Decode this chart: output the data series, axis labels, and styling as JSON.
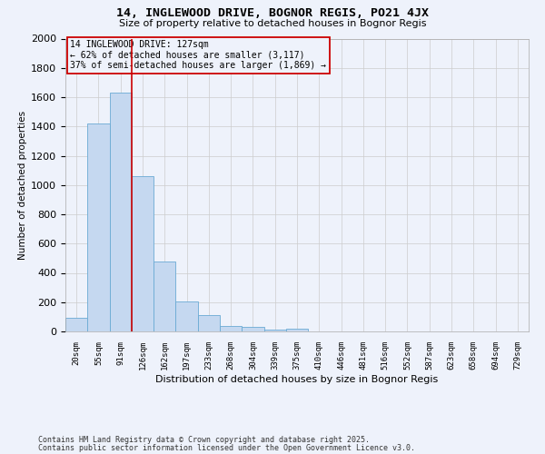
{
  "title": "14, INGLEWOOD DRIVE, BOGNOR REGIS, PO21 4JX",
  "subtitle": "Size of property relative to detached houses in Bognor Regis",
  "xlabel": "Distribution of detached houses by size in Bognor Regis",
  "ylabel": "Number of detached properties",
  "categories": [
    "20sqm",
    "55sqm",
    "91sqm",
    "126sqm",
    "162sqm",
    "197sqm",
    "233sqm",
    "268sqm",
    "304sqm",
    "339sqm",
    "375sqm",
    "410sqm",
    "446sqm",
    "481sqm",
    "516sqm",
    "552sqm",
    "587sqm",
    "623sqm",
    "658sqm",
    "694sqm",
    "729sqm"
  ],
  "values": [
    90,
    1420,
    1630,
    1060,
    480,
    205,
    110,
    40,
    30,
    15,
    20,
    0,
    0,
    0,
    0,
    0,
    0,
    0,
    0,
    0,
    0
  ],
  "bar_color": "#c5d8f0",
  "bar_edge_color": "#6aaad4",
  "bar_edge_width": 0.6,
  "red_line_x": 2.5,
  "red_line_color": "#cc0000",
  "annotation_line1": "14 INGLEWOOD DRIVE: 127sqm",
  "annotation_line2": "← 62% of detached houses are smaller (3,117)",
  "annotation_line3": "37% of semi-detached houses are larger (1,869) →",
  "annotation_box_color": "#cc0000",
  "ylim": [
    0,
    2000
  ],
  "yticks": [
    0,
    200,
    400,
    600,
    800,
    1000,
    1200,
    1400,
    1600,
    1800,
    2000
  ],
  "grid_color": "#cccccc",
  "background_color": "#eef2fb",
  "footer_line1": "Contains HM Land Registry data © Crown copyright and database right 2025.",
  "footer_line2": "Contains public sector information licensed under the Open Government Licence v3.0."
}
